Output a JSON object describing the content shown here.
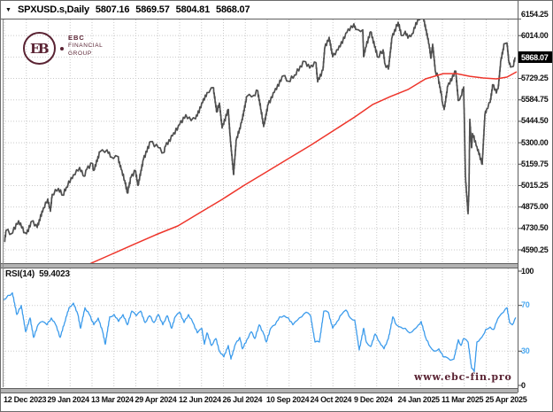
{
  "titlebar": {
    "collapse_icon": "▼",
    "symbol": "SPXUSD.s,Daily",
    "open": "5807.16",
    "high": "5869.57",
    "low": "5804.81",
    "close": "5868.07"
  },
  "logo": {
    "monogram": "EB",
    "line1": "EBC",
    "line2": "FINANCIAL",
    "line3": "GROUP"
  },
  "indicator": {
    "name": "RSI(14)",
    "value": "59.4023"
  },
  "watermark": "www.ebc-fin.pro",
  "colors": {
    "maroon": "#5a2333",
    "price": "#4f4f4f",
    "ma": "#ee352b",
    "rsi": "#3d9cec",
    "grid": "#c9c9c9",
    "axis_text": "#111111",
    "rsi_level_text": "#4aa8f0",
    "tag_bg": "#000000",
    "tag_text": "#ffffff",
    "tick": "#444444"
  },
  "price_axis": [
    {
      "text": "6154.25"
    },
    {
      "text": "6014.00"
    },
    {
      "text": "5868.07",
      "current": true
    },
    {
      "text": "5729.25"
    },
    {
      "text": "5584.75"
    },
    {
      "text": "5444.50"
    },
    {
      "text": "5300.00"
    },
    {
      "text": "5159.75"
    },
    {
      "text": "5015.25"
    },
    {
      "text": "4875.00"
    },
    {
      "text": "4730.50"
    },
    {
      "text": "4590.25"
    }
  ],
  "rsi_axis": [
    {
      "text": "100",
      "value": 100,
      "accent": false
    },
    {
      "text": "70",
      "value": 70,
      "accent": true
    },
    {
      "text": "30",
      "value": 30,
      "accent": true
    },
    {
      "text": "0",
      "value": 0,
      "accent": false
    }
  ],
  "date_axis": [
    "12 Dec 2023",
    "29 Jan 2024",
    "13 Mar 2024",
    "29 Apr 2024",
    "12 Jun 2024",
    "26 Jul 2024",
    "10 Sep 2024",
    "24 Oct 2024",
    "9 Dec 2024",
    "24 Jan 2025",
    "11 Mar 2025",
    "25 Apr 2025"
  ],
  "chart_data": {
    "type": "line",
    "title": "SPXUSD.s Daily with moving average and RSI(14)",
    "price_axis_range": [
      4590.25,
      6154.25
    ],
    "rsi_axis_range": [
      0,
      100
    ],
    "rsi_levels": [
      70,
      30
    ],
    "grid": "dotted",
    "series": [
      {
        "name": "price",
        "color_key": "price",
        "panel": "main",
        "points": [
          [
            4,
            4643
          ],
          [
            6,
            4720
          ],
          [
            12,
            4698
          ],
          [
            20,
            4783
          ],
          [
            27,
            4705
          ],
          [
            29,
            4697
          ],
          [
            35,
            4780
          ],
          [
            41,
            4739
          ],
          [
            48,
            4868
          ],
          [
            53,
            4928
          ],
          [
            56,
            4846
          ],
          [
            58,
            4959
          ],
          [
            65,
            4998
          ],
          [
            70,
            4953
          ],
          [
            74,
            5006
          ],
          [
            82,
            5089
          ],
          [
            89,
            5137
          ],
          [
            94,
            5079
          ],
          [
            97,
            5124
          ],
          [
            103,
            5165
          ],
          [
            105,
            5117
          ],
          [
            112,
            5241
          ],
          [
            120,
            5254
          ],
          [
            125,
            5206
          ],
          [
            132,
            5210
          ],
          [
            136,
            5123
          ],
          [
            140,
            5051
          ],
          [
            143,
            4967
          ],
          [
            147,
            5071
          ],
          [
            152,
            5116
          ],
          [
            155,
            5018
          ],
          [
            161,
            5188
          ],
          [
            169,
            5308
          ],
          [
            178,
            5268
          ],
          [
            184,
            5235
          ],
          [
            186,
            5277
          ],
          [
            194,
            5347
          ],
          [
            202,
            5421
          ],
          [
            209,
            5487
          ],
          [
            215,
            5448
          ],
          [
            220,
            5460
          ],
          [
            228,
            5567
          ],
          [
            233,
            5634
          ],
          [
            240,
            5667
          ],
          [
            244,
            5505
          ],
          [
            247,
            5564
          ],
          [
            250,
            5399
          ],
          [
            257,
            5522
          ],
          [
            259,
            5346
          ],
          [
            263,
            5090
          ],
          [
            266,
            5319
          ],
          [
            272,
            5434
          ],
          [
            278,
            5608
          ],
          [
            286,
            5616
          ],
          [
            290,
            5648
          ],
          [
            294,
            5520
          ],
          [
            297,
            5408
          ],
          [
            302,
            5554
          ],
          [
            309,
            5635
          ],
          [
            319,
            5745
          ],
          [
            325,
            5709
          ],
          [
            332,
            5751
          ],
          [
            343,
            5841
          ],
          [
            349,
            5797
          ],
          [
            356,
            5833
          ],
          [
            358,
            5705
          ],
          [
            364,
            5783
          ],
          [
            366,
            5929
          ],
          [
            371,
            6001
          ],
          [
            375,
            5871
          ],
          [
            381,
            5917
          ],
          [
            391,
            6032
          ],
          [
            399,
            6090
          ],
          [
            401,
            6053
          ],
          [
            404,
            6051
          ],
          [
            409,
            6050
          ],
          [
            410,
            5872
          ],
          [
            412,
            5931
          ],
          [
            418,
            6037
          ],
          [
            426,
            5869
          ],
          [
            432,
            5918
          ],
          [
            434,
            5827
          ],
          [
            438,
            5790
          ],
          [
            442,
            5997
          ],
          [
            449,
            6101
          ],
          [
            453,
            6012
          ],
          [
            457,
            6041
          ],
          [
            460,
            5995
          ],
          [
            465,
            6026
          ],
          [
            471,
            6115
          ],
          [
            477,
            6144
          ],
          [
            484,
            5955
          ],
          [
            486,
            5862
          ],
          [
            488,
            5955
          ],
          [
            491,
            5778
          ],
          [
            494,
            5738
          ],
          [
            498,
            5615
          ],
          [
            499,
            5572
          ],
          [
            501,
            5521
          ],
          [
            505,
            5675
          ],
          [
            514,
            5777
          ],
          [
            517,
            5581
          ],
          [
            520,
            5612
          ],
          [
            523,
            5671
          ],
          [
            524,
            5396
          ],
          [
            525,
            5074
          ],
          [
            528,
            4830
          ],
          [
            529,
            4983
          ],
          [
            530,
            5457
          ],
          [
            532,
            5268
          ],
          [
            533,
            5363
          ],
          [
            538,
            5276
          ],
          [
            544,
            5158
          ],
          [
            547,
            5485
          ],
          [
            549,
            5525
          ],
          [
            553,
            5569
          ],
          [
            556,
            5687
          ],
          [
            560,
            5631
          ],
          [
            562,
            5660
          ],
          [
            565,
            5844
          ],
          [
            569,
            5958
          ],
          [
            572,
            5963
          ],
          [
            574,
            5845
          ],
          [
            576,
            5803
          ],
          [
            579,
            5807
          ],
          [
            581,
            5868
          ]
        ]
      },
      {
        "name": "moving_average",
        "color_key": "ma",
        "panel": "main",
        "points": [
          [
            100,
            4496
          ],
          [
            125,
            4561
          ],
          [
            150,
            4626
          ],
          [
            175,
            4690
          ],
          [
            200,
            4749
          ],
          [
            225,
            4837
          ],
          [
            250,
            4925
          ],
          [
            275,
            5019
          ],
          [
            300,
            5107
          ],
          [
            325,
            5196
          ],
          [
            350,
            5284
          ],
          [
            375,
            5378
          ],
          [
            400,
            5472
          ],
          [
            420,
            5554
          ],
          [
            440,
            5607
          ],
          [
            460,
            5654
          ],
          [
            480,
            5725
          ],
          [
            500,
            5760
          ],
          [
            515,
            5760
          ],
          [
            530,
            5742
          ],
          [
            545,
            5731
          ],
          [
            560,
            5725
          ],
          [
            572,
            5737
          ],
          [
            583,
            5772
          ]
        ]
      },
      {
        "name": "rsi",
        "color_key": "rsi",
        "panel": "rsi",
        "points": [
          [
            3,
            75
          ],
          [
            13,
            81
          ],
          [
            18,
            62
          ],
          [
            23,
            70
          ],
          [
            28,
            47
          ],
          [
            33,
            59
          ],
          [
            37,
            42
          ],
          [
            42,
            53
          ],
          [
            47,
            56
          ],
          [
            52,
            53
          ],
          [
            57,
            59
          ],
          [
            62,
            53
          ],
          [
            67,
            42
          ],
          [
            72,
            55
          ],
          [
            77,
            68
          ],
          [
            82,
            72
          ],
          [
            87,
            62
          ],
          [
            90,
            50
          ],
          [
            95,
            68
          ],
          [
            100,
            62
          ],
          [
            105,
            53
          ],
          [
            110,
            59
          ],
          [
            115,
            47
          ],
          [
            118,
            36
          ],
          [
            123,
            60
          ],
          [
            128,
            62
          ],
          [
            133,
            56
          ],
          [
            138,
            62
          ],
          [
            143,
            53
          ],
          [
            148,
            65
          ],
          [
            153,
            61
          ],
          [
            158,
            65
          ],
          [
            163,
            55
          ],
          [
            168,
            61
          ],
          [
            173,
            55
          ],
          [
            178,
            62
          ],
          [
            183,
            53
          ],
          [
            188,
            61
          ],
          [
            193,
            50
          ],
          [
            197,
            60
          ],
          [
            202,
            64
          ],
          [
            207,
            55
          ],
          [
            212,
            62
          ],
          [
            217,
            55
          ],
          [
            222,
            46
          ],
          [
            227,
            50
          ],
          [
            230,
            36
          ],
          [
            233,
            46
          ],
          [
            238,
            35
          ],
          [
            243,
            41
          ],
          [
            247,
            30
          ],
          [
            252,
            25
          ],
          [
            257,
            35
          ],
          [
            260,
            23
          ],
          [
            265,
            36
          ],
          [
            270,
            42
          ],
          [
            273,
            32
          ],
          [
            278,
            40
          ],
          [
            283,
            47
          ],
          [
            287,
            41
          ],
          [
            292,
            53
          ],
          [
            297,
            45
          ],
          [
            300,
            38
          ],
          [
            305,
            50
          ],
          [
            310,
            53
          ],
          [
            315,
            60
          ],
          [
            320,
            61
          ],
          [
            325,
            59
          ],
          [
            330,
            53
          ],
          [
            335,
            57
          ],
          [
            340,
            60
          ],
          [
            345,
            64
          ],
          [
            350,
            61
          ],
          [
            355,
            38
          ],
          [
            360,
            38
          ],
          [
            365,
            65
          ],
          [
            370,
            64
          ],
          [
            375,
            50
          ],
          [
            380,
            56
          ],
          [
            385,
            62
          ],
          [
            390,
            66
          ],
          [
            395,
            59
          ],
          [
            400,
            57
          ],
          [
            405,
            31
          ],
          [
            410,
            50
          ],
          [
            413,
            38
          ],
          [
            418,
            34
          ],
          [
            423,
            45
          ],
          [
            428,
            38
          ],
          [
            433,
            32
          ],
          [
            438,
            41
          ],
          [
            443,
            60
          ],
          [
            447,
            53
          ],
          [
            452,
            51
          ],
          [
            457,
            50
          ],
          [
            462,
            46
          ],
          [
            467,
            49
          ],
          [
            472,
            53
          ],
          [
            475,
            56
          ],
          [
            480,
            42
          ],
          [
            485,
            34
          ],
          [
            490,
            30
          ],
          [
            495,
            32
          ],
          [
            500,
            25
          ],
          [
            505,
            24
          ],
          [
            508,
            22
          ],
          [
            512,
            23
          ],
          [
            517,
            40
          ],
          [
            520,
            35
          ],
          [
            523,
            41
          ],
          [
            528,
            38
          ],
          [
            532,
            15
          ],
          [
            535,
            12
          ],
          [
            538,
            38
          ],
          [
            542,
            41
          ],
          [
            545,
            44
          ],
          [
            548,
            49
          ],
          [
            553,
            51
          ],
          [
            557,
            49
          ],
          [
            560,
            55
          ],
          [
            563,
            60
          ],
          [
            568,
            64
          ],
          [
            572,
            68
          ],
          [
            575,
            55
          ],
          [
            578,
            53
          ],
          [
            582,
            59.4
          ]
        ]
      }
    ]
  }
}
